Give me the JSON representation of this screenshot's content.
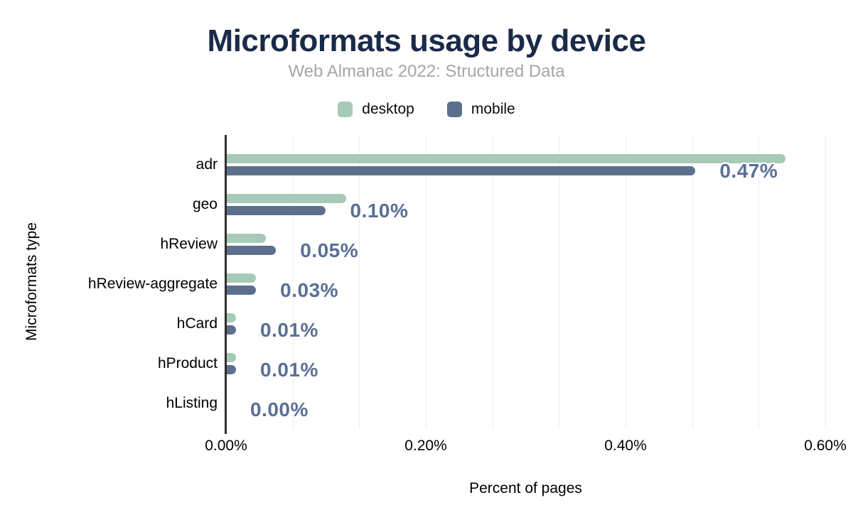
{
  "chart_data": {
    "type": "bar",
    "orientation": "horizontal",
    "title": "Microformats usage by device",
    "subtitle": "Web Almanac 2022: Structured Data",
    "xlabel": "Percent of pages",
    "ylabel": "Microformats type",
    "categories": [
      "adr",
      "geo",
      "hReview",
      "hReview-aggregate",
      "hCard",
      "hProduct",
      "hListing"
    ],
    "series": [
      {
        "name": "desktop",
        "color": "#a6cab7",
        "values": [
          0.56,
          0.12,
          0.04,
          0.03,
          0.01,
          0.01,
          0.0
        ]
      },
      {
        "name": "mobile",
        "color": "#5c6f8d",
        "values": [
          0.47,
          0.1,
          0.05,
          0.03,
          0.01,
          0.01,
          0.0
        ]
      }
    ],
    "value_labels": [
      "0.47%",
      "0.10%",
      "0.05%",
      "0.03%",
      "0.01%",
      "0.01%",
      "0.00%"
    ],
    "value_labels_series": "mobile",
    "x_tick_labels": [
      "0.00%",
      "0.20%",
      "0.40%",
      "0.60%"
    ],
    "xlim": [
      0,
      0.6
    ],
    "grid_divisions": 9,
    "grid": true,
    "legend_position": "top",
    "colors": {
      "title": "#1a2b49",
      "subtitle": "#a6a6a6",
      "value_label": "#5a6f94",
      "axis_line": "#2e2e2e",
      "gridline": "#ededed"
    }
  }
}
